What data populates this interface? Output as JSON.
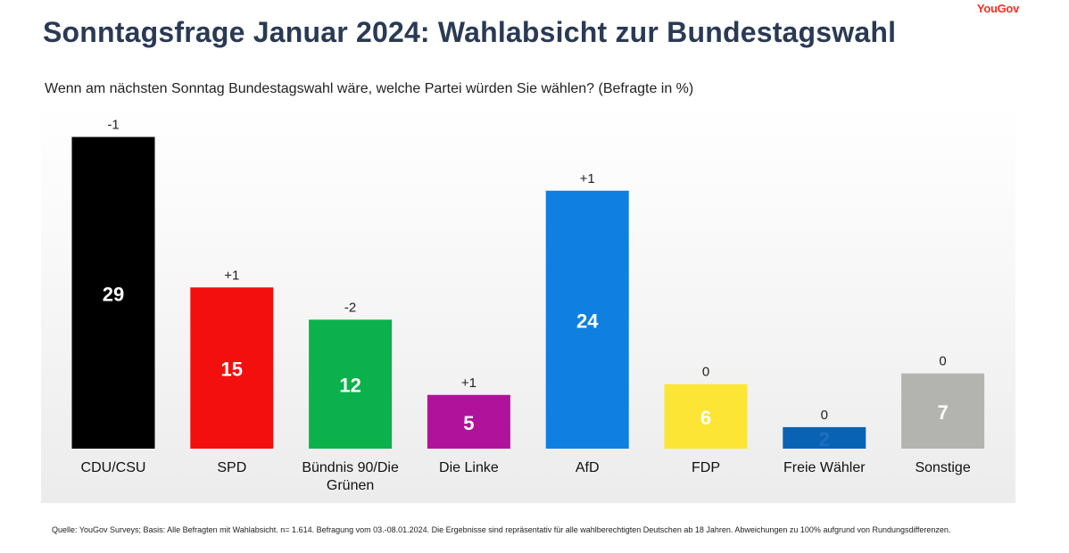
{
  "brand": "YouGov",
  "header": {
    "title": "Sonntagsfrage Januar 2024: Wahlabsicht zur Bundestagswahl"
  },
  "chart_data": {
    "type": "bar",
    "title": "Sonntagsfrage Januar 2024: Wahlabsicht zur Bundestagswahl",
    "subtitle": "Wenn am nächsten Sonntag Bundestagswahl wäre, welche Partei würden Sie wählen? (Befragte in %)",
    "ylabel": "Befragte in %",
    "ylim": [
      0,
      30
    ],
    "categories": [
      "CDU/CSU",
      "SPD",
      "Bündnis 90/Die Grünen",
      "Die Linke",
      "AfD",
      "FDP",
      "Freie Wähler",
      "Sonstige"
    ],
    "category_lines": [
      [
        "CDU/CSU"
      ],
      [
        "SPD"
      ],
      [
        "Bündnis 90/Die",
        "Grünen"
      ],
      [
        "Die Linke"
      ],
      [
        "AfD"
      ],
      [
        "FDP"
      ],
      [
        "Freie Wähler"
      ],
      [
        "Sonstige"
      ]
    ],
    "values": [
      29,
      15,
      12,
      5,
      24,
      6,
      2,
      7
    ],
    "changes": [
      "-1",
      "+1",
      "-2",
      "+1",
      "+1",
      "0",
      "0",
      "0"
    ],
    "colors": [
      "#000000",
      "#f40f0f",
      "#0cb14b",
      "#b0139b",
      "#0f7fe0",
      "#fde535",
      "#0a62b5",
      "#b3b3b0"
    ],
    "label_colors": [
      "#ffffff",
      "#ffffff",
      "#ffffff",
      "#ffffff",
      "#ffffff",
      "#ffffff",
      "#1e6fbf",
      "#ffffff"
    ]
  },
  "footer": {
    "source": "Quelle: YouGov Surveys; Basis: Alle Befragten mit Wahlabsicht. n= 1.614. Befragung vom 03.-08.01.2024. Die Ergebnisse sind repräsentativ für alle wahlberechtigten Deutschen ab 18 Jahren. Abweichungen zu 100% aufgrund von Rundungsdifferenzen."
  }
}
